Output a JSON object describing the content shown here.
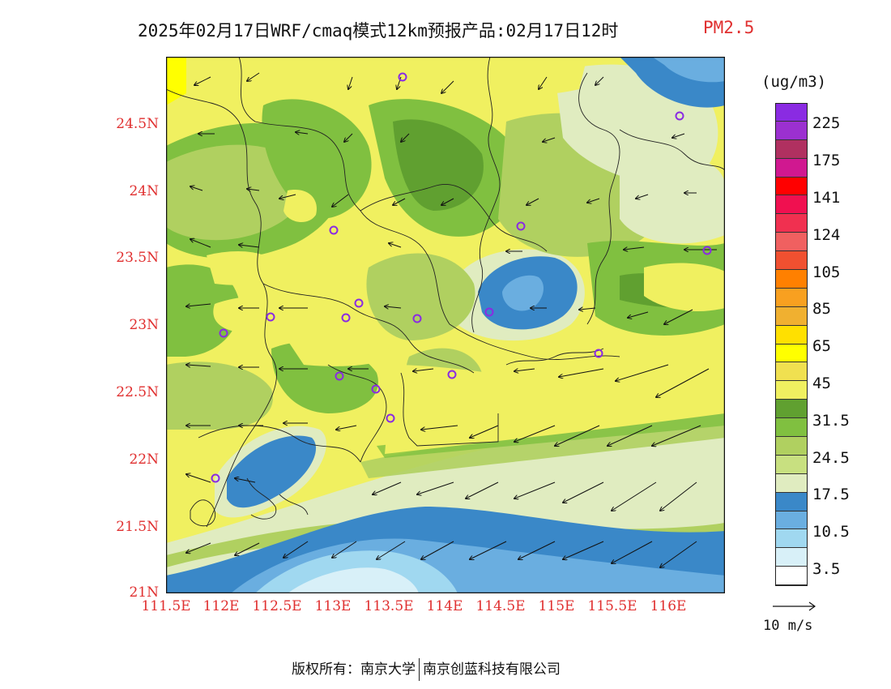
{
  "title": {
    "main": "2025年02月17日WRF/cmaq模式12km预报产品:02月17日12时",
    "pollutant": "PM2.5"
  },
  "axes": {
    "lat_ticks": [
      "24.5N",
      "24N",
      "23.5N",
      "23N",
      "22.5N",
      "22N",
      "21.5N",
      "21N"
    ],
    "lon_ticks": [
      "111.5E",
      "112E",
      "112.5E",
      "113E",
      "113.5E",
      "114E",
      "114.5E",
      "115E",
      "115.5E",
      "116E"
    ]
  },
  "colorbar": {
    "unit": "(ug/m3)",
    "colors": [
      "#8a2be2",
      "#9b30d0",
      "#b03060",
      "#d01890",
      "#ff0000",
      "#f01050",
      "#f03050",
      "#f06060",
      "#f05030",
      "#ff8000",
      "#f8a020",
      "#f0b030",
      "#ffe000",
      "#ffff00",
      "#f0e050",
      "#f0f060",
      "#60a030",
      "#80c040",
      "#b0d060",
      "#c8e080",
      "#e0ecc0",
      "#3a88c8",
      "#6aaee0",
      "#a0d8f0",
      "#d8f0f8",
      "#ffffff"
    ],
    "labels": [
      "225",
      "175",
      "141",
      "124",
      "105",
      "85",
      "65",
      "45",
      "31.5",
      "24.5",
      "17.5",
      "10.5",
      "3.5"
    ]
  },
  "wind_reference": {
    "label": "10 m/s"
  },
  "footer": {
    "left": "版权所有：南京大学",
    "right": "南京创蓝科技有限公司"
  }
}
